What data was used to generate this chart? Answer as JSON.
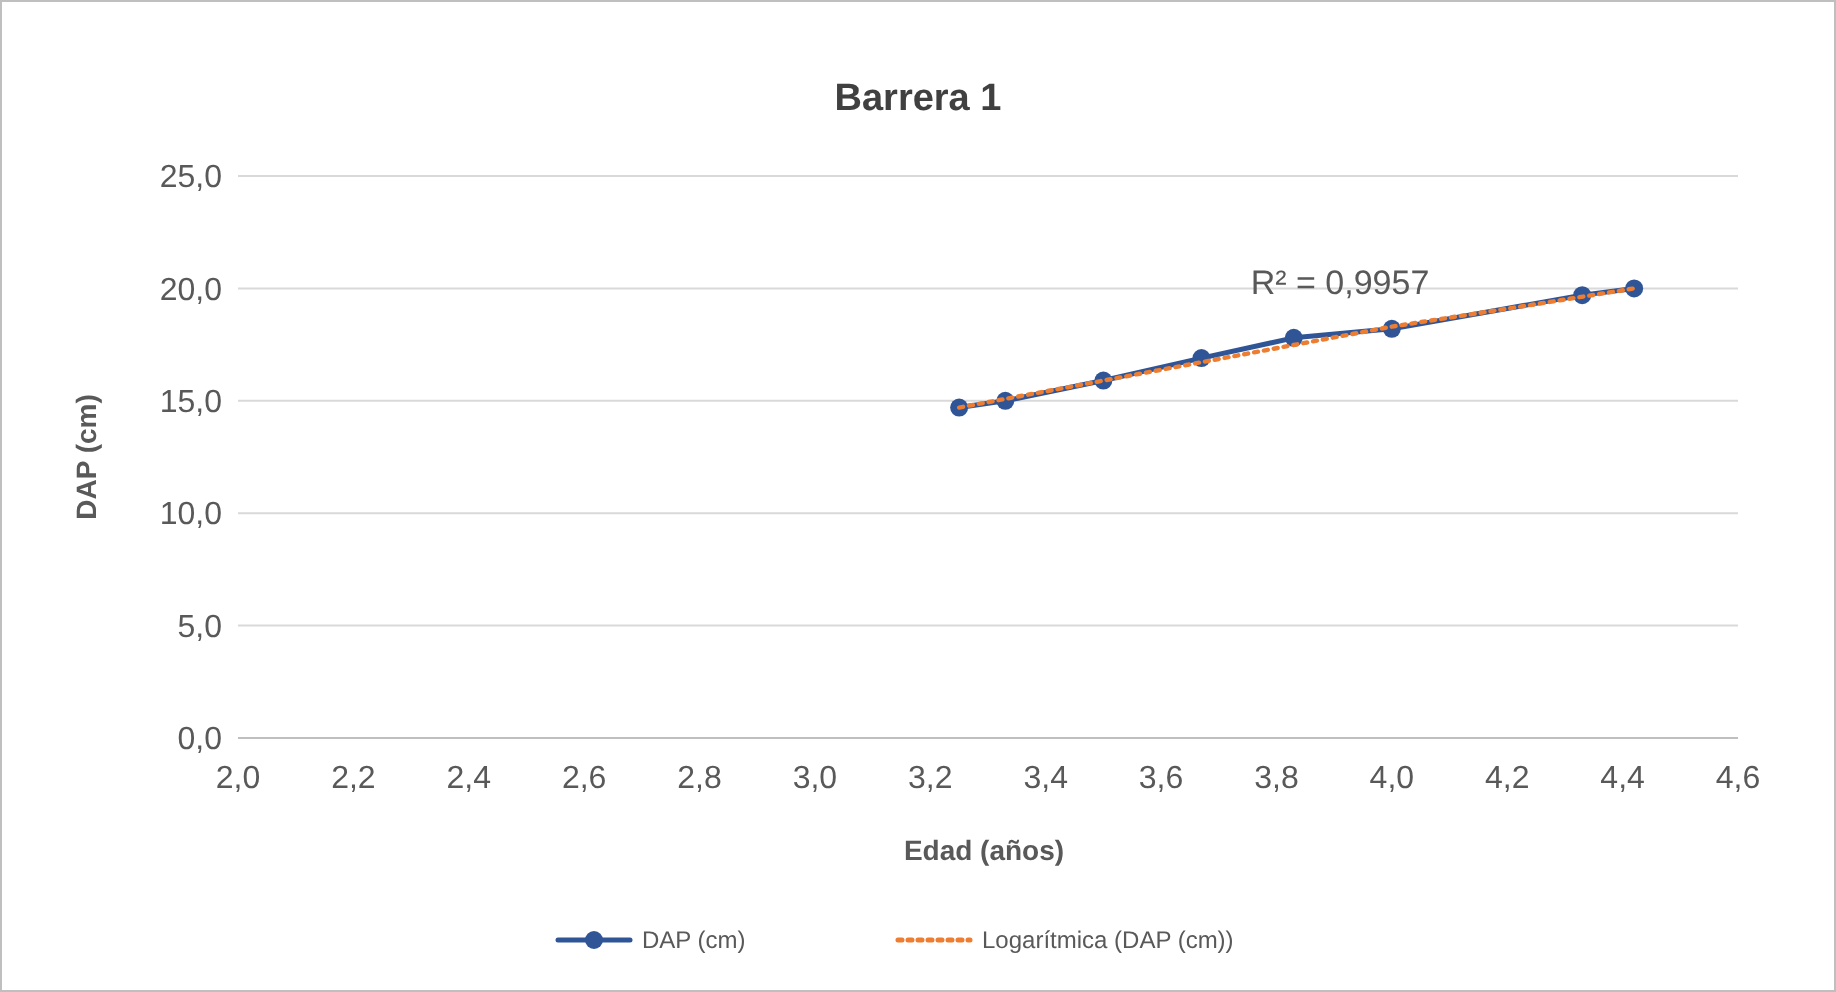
{
  "chart_data": {
    "type": "line",
    "title": "Barrera 1",
    "xlabel": "Edad (años)",
    "ylabel": "DAP (cm)",
    "series": [
      {
        "name": "DAP (cm)",
        "color": "#2f5597",
        "x": [
          3.25,
          3.33,
          3.5,
          3.67,
          3.83,
          4.0,
          4.33,
          4.42
        ],
        "values": [
          14.7,
          15.0,
          15.9,
          16.9,
          17.8,
          18.2,
          19.7,
          20.0
        ],
        "marker": "circle",
        "line_style": "solid"
      },
      {
        "name": "Logarítmica (DAP (cm))",
        "color": "#ed7d31",
        "x": [
          3.25,
          3.5,
          3.75,
          4.0,
          4.25,
          4.42
        ],
        "values": [
          14.7,
          15.9,
          17.1,
          18.3,
          19.3,
          20.0
        ],
        "marker": "none",
        "line_style": "dotted"
      }
    ],
    "annotations": [
      "R² = 0,9957"
    ],
    "xlim": [
      2.0,
      4.6
    ],
    "xticks": [
      {
        "value": 2.0,
        "label": "2,0"
      },
      {
        "value": 2.2,
        "label": "2,2"
      },
      {
        "value": 2.4,
        "label": "2,4"
      },
      {
        "value": 2.6,
        "label": "2,6"
      },
      {
        "value": 2.8,
        "label": "2,8"
      },
      {
        "value": 3.0,
        "label": "3,0"
      },
      {
        "value": 3.2,
        "label": "3,2"
      },
      {
        "value": 3.4,
        "label": "3,4"
      },
      {
        "value": 3.6,
        "label": "3,6"
      },
      {
        "value": 3.8,
        "label": "3,8"
      },
      {
        "value": 4.0,
        "label": "4,0"
      },
      {
        "value": 4.2,
        "label": "4,2"
      },
      {
        "value": 4.4,
        "label": "4,4"
      },
      {
        "value": 4.6,
        "label": "4,6"
      }
    ],
    "ylim": [
      0,
      25
    ],
    "yticks": [
      {
        "value": 0,
        "label": "0,0"
      },
      {
        "value": 5,
        "label": "5,0"
      },
      {
        "value": 10,
        "label": "10,0"
      },
      {
        "value": 15,
        "label": "15,0"
      },
      {
        "value": 20,
        "label": "20,0"
      },
      {
        "value": 25,
        "label": "25,0"
      }
    ],
    "grid": "y",
    "legend": "bottom"
  }
}
